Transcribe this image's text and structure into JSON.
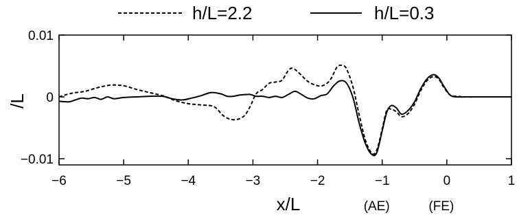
{
  "chart_data": {
    "type": "line",
    "title": "",
    "xlabel": "x/L",
    "ylabel": "/L",
    "xlim": [
      -6,
      1
    ],
    "ylim": [
      -0.011,
      0.01
    ],
    "xticks": [
      -6,
      -5,
      -4,
      -3,
      -2,
      -1,
      0,
      1
    ],
    "xtick_labels": [
      "−6",
      "−5",
      "−4",
      "−3",
      "−2",
      "−1",
      "0",
      "1"
    ],
    "yticks": [
      0.01,
      0,
      -0.01
    ],
    "ytick_labels": [
      "0.01",
      "0",
      "−0.01"
    ],
    "grid": false,
    "legend_position": "top",
    "annotations": [
      {
        "text": "(AE)",
        "x": -1.0
      },
      {
        "text": "(FE)",
        "x": 0.0
      }
    ],
    "series": [
      {
        "name": "h/L=2.2",
        "style": "dashed",
        "color": "#000000",
        "points": [
          [
            -6.0,
            0.0
          ],
          [
            -5.8,
            0.0006
          ],
          [
            -5.6,
            0.0009
          ],
          [
            -5.4,
            0.0015
          ],
          [
            -5.2,
            0.0019
          ],
          [
            -5.0,
            0.0018
          ],
          [
            -4.8,
            0.0012
          ],
          [
            -4.6,
            0.0007
          ],
          [
            -4.4,
            0.0002
          ],
          [
            -4.2,
            -0.0006
          ],
          [
            -4.0,
            -0.0011
          ],
          [
            -3.8,
            -0.0013
          ],
          [
            -3.6,
            -0.0016
          ],
          [
            -3.45,
            -0.0031
          ],
          [
            -3.3,
            -0.0037
          ],
          [
            -3.15,
            -0.0032
          ],
          [
            -3.05,
            -0.0017
          ],
          [
            -2.95,
            0.0005
          ],
          [
            -2.85,
            0.0012
          ],
          [
            -2.75,
            0.0022
          ],
          [
            -2.65,
            0.0024
          ],
          [
            -2.55,
            0.0027
          ],
          [
            -2.45,
            0.0043
          ],
          [
            -2.38,
            0.0046
          ],
          [
            -2.28,
            0.0038
          ],
          [
            -2.15,
            0.0025
          ],
          [
            -2.0,
            0.0018
          ],
          [
            -1.9,
            0.0019
          ],
          [
            -1.8,
            0.0028
          ],
          [
            -1.7,
            0.0048
          ],
          [
            -1.62,
            0.0051
          ],
          [
            -1.55,
            0.0045
          ],
          [
            -1.45,
            0.0015
          ],
          [
            -1.35,
            -0.0032
          ],
          [
            -1.25,
            -0.0073
          ],
          [
            -1.15,
            -0.0092
          ],
          [
            -1.08,
            -0.0085
          ],
          [
            -1.0,
            -0.0052
          ],
          [
            -0.93,
            -0.0022
          ],
          [
            -0.86,
            -0.002
          ],
          [
            -0.78,
            -0.0024
          ],
          [
            -0.7,
            -0.0032
          ],
          [
            -0.6,
            -0.0027
          ],
          [
            -0.5,
            -0.0012
          ],
          [
            -0.4,
            0.0011
          ],
          [
            -0.3,
            0.0027
          ],
          [
            -0.2,
            0.0033
          ],
          [
            -0.12,
            0.0028
          ],
          [
            -0.05,
            0.0016
          ],
          [
            0.05,
            0.0003
          ],
          [
            0.15,
            0.0001
          ],
          [
            0.3,
            0.0
          ],
          [
            0.5,
            0.0
          ],
          [
            0.75,
            0.0
          ],
          [
            1.0,
            0.0
          ]
        ]
      },
      {
        "name": "h/L=0.3",
        "style": "solid",
        "color": "#000000",
        "points": [
          [
            -6.0,
            -0.0007
          ],
          [
            -5.85,
            -0.0008
          ],
          [
            -5.75,
            -0.0005
          ],
          [
            -5.65,
            -0.0002
          ],
          [
            -5.55,
            -0.0003
          ],
          [
            -5.45,
            -0.0001
          ],
          [
            -5.35,
            -0.0004
          ],
          [
            -5.25,
            0.0
          ],
          [
            -5.15,
            -0.0003
          ],
          [
            -5.0,
            -0.0001
          ],
          [
            -4.8,
            0.0
          ],
          [
            -4.6,
            0.0001
          ],
          [
            -4.4,
            0.0001
          ],
          [
            -4.25,
            -0.0003
          ],
          [
            -4.1,
            -0.0005
          ],
          [
            -3.95,
            -0.0002
          ],
          [
            -3.8,
            0.0002
          ],
          [
            -3.65,
            0.0007
          ],
          [
            -3.5,
            0.0005
          ],
          [
            -3.4,
            0.0001
          ],
          [
            -3.3,
            0.0001
          ],
          [
            -3.2,
            0.0003
          ],
          [
            -3.05,
            0.0004
          ],
          [
            -2.95,
            0.0001
          ],
          [
            -2.85,
            0.0001
          ],
          [
            -2.75,
            -0.0001
          ],
          [
            -2.65,
            0.0001
          ],
          [
            -2.55,
            -0.0001
          ],
          [
            -2.45,
            0.0004
          ],
          [
            -2.35,
            0.0009
          ],
          [
            -2.25,
            0.0004
          ],
          [
            -2.15,
            -0.0002
          ],
          [
            -2.05,
            -0.0003
          ],
          [
            -1.95,
            0.0002
          ],
          [
            -1.85,
            0.0005
          ],
          [
            -1.75,
            0.0018
          ],
          [
            -1.65,
            0.0026
          ],
          [
            -1.55,
            0.0022
          ],
          [
            -1.45,
            -0.0002
          ],
          [
            -1.35,
            -0.0045
          ],
          [
            -1.25,
            -0.0078
          ],
          [
            -1.15,
            -0.0094
          ],
          [
            -1.08,
            -0.0089
          ],
          [
            -1.0,
            -0.0055
          ],
          [
            -0.93,
            -0.0025
          ],
          [
            -0.86,
            -0.0014
          ],
          [
            -0.78,
            -0.0018
          ],
          [
            -0.7,
            -0.0028
          ],
          [
            -0.6,
            -0.0022
          ],
          [
            -0.5,
            -0.0008
          ],
          [
            -0.4,
            0.0014
          ],
          [
            -0.3,
            0.003
          ],
          [
            -0.2,
            0.0036
          ],
          [
            -0.12,
            0.003
          ],
          [
            -0.05,
            0.0018
          ],
          [
            0.05,
            0.0003
          ],
          [
            0.15,
            0.0
          ],
          [
            0.3,
            0.0
          ],
          [
            0.5,
            0.0
          ],
          [
            0.75,
            0.0
          ],
          [
            1.0,
            0.0
          ]
        ]
      }
    ]
  }
}
